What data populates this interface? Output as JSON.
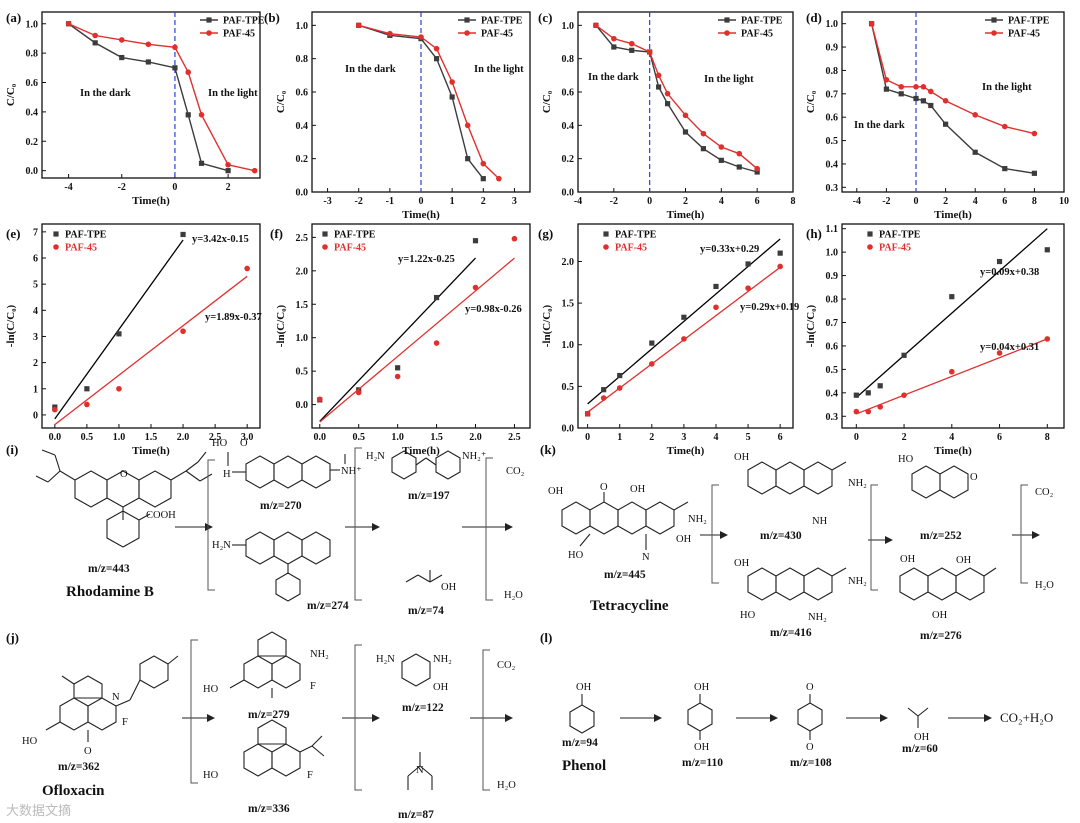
{
  "colors": {
    "series1": "#3c3c3c",
    "series2": "#e0302e",
    "fit1": "#000000",
    "fit2": "#e0302e",
    "dashed": "#2b3fd6"
  },
  "chart_data": [
    {
      "type": "line",
      "label": "(a)",
      "xlabel": "Time(h)",
      "ylabel": "C/C₀",
      "xlim": [
        -5,
        3.2
      ],
      "ylim": [
        -0.05,
        1.08
      ],
      "xticks": [
        -4,
        -2,
        0,
        2
      ],
      "yticks": [
        0.0,
        0.2,
        0.4,
        0.6,
        0.8,
        1.0
      ],
      "tick_decimals": 1,
      "series": [
        {
          "name": "PAF-TPE",
          "x": [
            -4,
            -3,
            -2,
            -1,
            0,
            0.5,
            1,
            2
          ],
          "y": [
            1.0,
            0.87,
            0.77,
            0.74,
            0.7,
            0.38,
            0.05,
            0.0
          ]
        },
        {
          "name": "PAF-45",
          "x": [
            -4,
            -3,
            -2,
            -1,
            0,
            0.5,
            1,
            2,
            3
          ],
          "y": [
            1.0,
            0.92,
            0.89,
            0.86,
            0.84,
            0.67,
            0.38,
            0.04,
            0.0
          ]
        }
      ],
      "annotations": [
        "In the dark",
        "In the light"
      ],
      "dashed_x": 0
    },
    {
      "type": "line",
      "label": "(b)",
      "xlabel": "Time(h)",
      "ylabel": "C/C₀",
      "xlim": [
        -3.5,
        3.5
      ],
      "ylim": [
        0,
        1.08
      ],
      "xticks": [
        -3,
        -2,
        -1,
        0,
        1,
        2,
        3
      ],
      "yticks": [
        0.0,
        0.2,
        0.4,
        0.6,
        0.8,
        1.0
      ],
      "tick_decimals": 1,
      "series": [
        {
          "name": "PAF-TPE",
          "x": [
            -2,
            -1,
            0,
            0.5,
            1,
            1.5,
            2
          ],
          "y": [
            1.0,
            0.94,
            0.92,
            0.8,
            0.57,
            0.2,
            0.08
          ]
        },
        {
          "name": "PAF-45",
          "x": [
            -2,
            -1,
            0,
            0.5,
            1,
            1.5,
            2,
            2.5
          ],
          "y": [
            1.0,
            0.95,
            0.93,
            0.86,
            0.66,
            0.4,
            0.17,
            0.08
          ]
        }
      ],
      "annotations": [
        "In the dark",
        "In the light"
      ],
      "dashed_x": 0
    },
    {
      "type": "line",
      "label": "(c)",
      "xlabel": "Time(h)",
      "ylabel": "C/C₀",
      "xlim": [
        -4,
        8
      ],
      "ylim": [
        0,
        1.08
      ],
      "xticks": [
        -4,
        -2,
        0,
        2,
        4,
        6,
        8
      ],
      "yticks": [
        0.0,
        0.2,
        0.4,
        0.6,
        0.8,
        1.0
      ],
      "tick_decimals": 1,
      "series": [
        {
          "name": "PAF-TPE",
          "x": [
            -3,
            -2,
            -1,
            0,
            0.5,
            1,
            2,
            3,
            4,
            5,
            6
          ],
          "y": [
            1.0,
            0.87,
            0.85,
            0.84,
            0.63,
            0.53,
            0.36,
            0.26,
            0.19,
            0.15,
            0.12
          ]
        },
        {
          "name": "PAF-45",
          "x": [
            -3,
            -2,
            -1,
            0,
            0.5,
            1,
            2,
            3,
            4,
            5,
            6
          ],
          "y": [
            1.0,
            0.92,
            0.89,
            0.84,
            0.7,
            0.59,
            0.46,
            0.35,
            0.27,
            0.23,
            0.14
          ]
        }
      ],
      "annotations": [
        "In the dark",
        "In the light"
      ],
      "dashed_x": 0
    },
    {
      "type": "line",
      "label": "(d)",
      "xlabel": "Time(h)",
      "ylabel": "C/C₀",
      "xlim": [
        -5,
        10
      ],
      "ylim": [
        0.28,
        1.05
      ],
      "xticks": [
        -4,
        -2,
        0,
        2,
        4,
        6,
        8,
        10
      ],
      "yticks": [
        0.3,
        0.4,
        0.5,
        0.6,
        0.7,
        0.8,
        0.9,
        1.0
      ],
      "tick_decimals": 1,
      "series": [
        {
          "name": "PAF-TPE",
          "x": [
            -3,
            -2,
            -1,
            0,
            0.5,
            1,
            2,
            4,
            6,
            8
          ],
          "y": [
            1.0,
            0.72,
            0.7,
            0.68,
            0.67,
            0.65,
            0.57,
            0.45,
            0.38,
            0.36
          ]
        },
        {
          "name": "PAF-45",
          "x": [
            -3,
            -2,
            -1,
            0,
            0.5,
            1,
            2,
            4,
            6,
            8
          ],
          "y": [
            1.0,
            0.76,
            0.73,
            0.73,
            0.73,
            0.71,
            0.67,
            0.61,
            0.56,
            0.53
          ]
        }
      ],
      "annotations": [
        "In the dark",
        "In the light"
      ],
      "dashed_x": 0
    },
    {
      "type": "scatter",
      "label": "(e)",
      "xlabel": "Time(h)",
      "ylabel": "-ln(C/C₀)",
      "xlim": [
        -0.2,
        3.2
      ],
      "ylim": [
        -0.5,
        7.3
      ],
      "xticks": [
        0.0,
        0.5,
        1.0,
        1.5,
        2.0,
        2.5,
        3.0
      ],
      "yticks": [
        0,
        1,
        2,
        3,
        4,
        5,
        6,
        7
      ],
      "tick_decimals": 1,
      "ytick_decimals": 0,
      "series": [
        {
          "name": "PAF-TPE",
          "x": [
            0,
            0.5,
            1,
            2
          ],
          "y": [
            0.3,
            1.0,
            3.1,
            6.9
          ],
          "fit": [
            3.42,
            -0.15
          ],
          "fit_x": [
            0,
            2
          ]
        },
        {
          "name": "PAF-45",
          "x": [
            0,
            0.5,
            1,
            2,
            3
          ],
          "y": [
            0.2,
            0.4,
            1.0,
            3.2,
            5.6
          ],
          "fit": [
            1.89,
            -0.37
          ],
          "fit_x": [
            0,
            3
          ]
        }
      ],
      "annotations": [
        "y=3.42x-0.15",
        "y=1.89x-0.37"
      ]
    },
    {
      "type": "scatter",
      "label": "(f)",
      "xlabel": "Time(h)",
      "ylabel": "-ln(C/C₀)",
      "xlim": [
        -0.1,
        2.7
      ],
      "ylim": [
        -0.35,
        2.7
      ],
      "xticks": [
        0.0,
        0.5,
        1.0,
        1.5,
        2.0,
        2.5
      ],
      "yticks": [
        0.0,
        0.5,
        1.0,
        1.5,
        2.0,
        2.5
      ],
      "tick_decimals": 1,
      "series": [
        {
          "name": "PAF-TPE",
          "x": [
            0,
            0.5,
            1,
            1.5,
            2
          ],
          "y": [
            0.07,
            0.22,
            0.55,
            1.6,
            2.45
          ],
          "fit": [
            1.22,
            -0.25
          ],
          "fit_x": [
            0,
            2
          ]
        },
        {
          "name": "PAF-45",
          "x": [
            0,
            0.5,
            1,
            1.5,
            2,
            2.5
          ],
          "y": [
            0.08,
            0.18,
            0.42,
            0.92,
            1.75,
            2.48
          ],
          "fit": [
            0.98,
            -0.26
          ],
          "fit_x": [
            0,
            2.5
          ]
        }
      ],
      "annotations": [
        "y=1.22x-0.25",
        "y=0.98x-0.26"
      ]
    },
    {
      "type": "scatter",
      "label": "(g)",
      "xlabel": "Time(h)",
      "ylabel": "-ln(C/C₀)",
      "xlim": [
        -0.3,
        6.4
      ],
      "ylim": [
        0,
        2.45
      ],
      "xticks": [
        0,
        1,
        2,
        3,
        4,
        5,
        6
      ],
      "yticks": [
        0.0,
        0.5,
        1.0,
        1.5,
        2.0
      ],
      "tick_decimals": 1,
      "xtick_decimals": 0,
      "series": [
        {
          "name": "PAF-TPE",
          "x": [
            0,
            0.5,
            1,
            2,
            3,
            4,
            5,
            6
          ],
          "y": [
            0.17,
            0.46,
            0.63,
            1.02,
            1.33,
            1.7,
            1.97,
            2.1
          ],
          "fit": [
            0.33,
            0.29
          ],
          "fit_x": [
            0,
            6
          ]
        },
        {
          "name": "PAF-45",
          "x": [
            0,
            0.5,
            1,
            2,
            3,
            4,
            5,
            6
          ],
          "y": [
            0.17,
            0.36,
            0.48,
            0.77,
            1.07,
            1.45,
            1.68,
            1.94
          ],
          "fit": [
            0.29,
            0.19
          ],
          "fit_x": [
            0,
            6
          ]
        }
      ],
      "annotations": [
        "y=0.33x+0.29",
        "y=0.29x+0.19"
      ]
    },
    {
      "type": "scatter",
      "label": "(h)",
      "xlabel": "Time(h)",
      "ylabel": "-ln(C/C₀)",
      "xlim": [
        -0.6,
        8.7
      ],
      "ylim": [
        0.25,
        1.12
      ],
      "xticks": [
        0,
        2,
        4,
        6,
        8
      ],
      "yticks": [
        0.3,
        0.4,
        0.5,
        0.6,
        0.7,
        0.8,
        0.9,
        1.0,
        1.1
      ],
      "tick_decimals": 1,
      "xtick_decimals": 0,
      "series": [
        {
          "name": "PAF-TPE",
          "x": [
            0,
            0.5,
            1,
            2,
            4,
            6,
            8
          ],
          "y": [
            0.39,
            0.4,
            0.43,
            0.56,
            0.81,
            0.96,
            1.01
          ],
          "fit": [
            0.09,
            0.38
          ],
          "fit_x": [
            0,
            8
          ]
        },
        {
          "name": "PAF-45",
          "x": [
            0,
            0.5,
            1,
            2,
            4,
            6,
            8
          ],
          "y": [
            0.32,
            0.32,
            0.34,
            0.39,
            0.49,
            0.57,
            0.63
          ],
          "fit": [
            0.04,
            0.31
          ],
          "fit_x": [
            0,
            8
          ]
        }
      ],
      "annotations": [
        "y=0.09x+0.38",
        "y=0.04x+0.31"
      ]
    }
  ],
  "pathways": {
    "i": {
      "label": "(i)",
      "compound": "Rhodamine B",
      "mz": [
        "m/z=443",
        "m/z=270",
        "m/z=274",
        "m/z=197",
        "m/z=74"
      ],
      "products": [
        "CO₂",
        "H₂O"
      ],
      "fragments": [
        "COOH",
        "HO",
        "O",
        "N",
        "H",
        "NH⁺",
        "H₂N",
        "NH₂⁺",
        "OH"
      ]
    },
    "j": {
      "label": "(j)",
      "compound": "Ofloxacin",
      "mz": [
        "m/z=362",
        "m/z=279",
        "m/z=336",
        "m/z=122",
        "m/z=87"
      ],
      "products": [
        "CO₂",
        "H₂O"
      ],
      "fragments": [
        "HO",
        "O",
        "N",
        "F",
        "NH₂",
        "H₂N",
        "OH"
      ]
    },
    "k": {
      "label": "(k)",
      "compound": "Tetracycline",
      "mz": [
        "m/z=445",
        "m/z=430",
        "m/z=416",
        "m/z=252",
        "m/z=276"
      ],
      "products": [
        "CO₂",
        "H₂O"
      ],
      "fragments": [
        "OH",
        "O",
        "NH₂",
        "HO",
        "N",
        "NH",
        "HO",
        "OH",
        "O"
      ]
    },
    "l": {
      "label": "(l)",
      "compound": "Phenol",
      "mz": [
        "m/z=94",
        "m/z=110",
        "m/z=108",
        "m/z=60"
      ],
      "product": "CO₂+H₂O",
      "fragments": [
        "OH",
        "OH",
        "O",
        "OH"
      ]
    }
  },
  "watermark": "大数据文摘"
}
